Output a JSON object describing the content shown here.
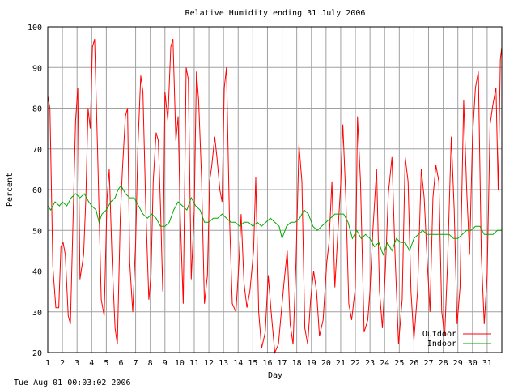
{
  "chart_data": {
    "type": "line",
    "title": "Relative Humidity ending 31 July 2006",
    "xlabel": "Day",
    "ylabel": "Percent",
    "xlim": [
      1,
      32
    ],
    "ylim": [
      20,
      100
    ],
    "x_ticks": [
      "1",
      "2",
      "3",
      "4",
      "5",
      "6",
      "7",
      "8",
      "9",
      "10",
      "11",
      "12",
      "13",
      "14",
      "15",
      "16",
      "17",
      "18",
      "19",
      "20",
      "21",
      "22",
      "23",
      "24",
      "25",
      "26",
      "27",
      "28",
      "29",
      "30",
      "31"
    ],
    "y_ticks": [
      "20",
      "30",
      "40",
      "50",
      "60",
      "70",
      "80",
      "90",
      "100"
    ],
    "grid": true,
    "legend_position": "bottom-right",
    "series": [
      {
        "name": "Outdoor",
        "color": "#ff0000",
        "points": [
          [
            1.0,
            83
          ],
          [
            1.15,
            80
          ],
          [
            1.35,
            41
          ],
          [
            1.55,
            31
          ],
          [
            1.75,
            31
          ],
          [
            1.9,
            46
          ],
          [
            2.05,
            47
          ],
          [
            2.2,
            44
          ],
          [
            2.4,
            29
          ],
          [
            2.55,
            27
          ],
          [
            2.7,
            49
          ],
          [
            2.9,
            77
          ],
          [
            3.05,
            85
          ],
          [
            3.2,
            38
          ],
          [
            3.45,
            44
          ],
          [
            3.6,
            58
          ],
          [
            3.75,
            80
          ],
          [
            3.9,
            75
          ],
          [
            4.05,
            95
          ],
          [
            4.2,
            97
          ],
          [
            4.4,
            70
          ],
          [
            4.65,
            33
          ],
          [
            4.85,
            29
          ],
          [
            5.05,
            58
          ],
          [
            5.2,
            65
          ],
          [
            5.4,
            42
          ],
          [
            5.6,
            26
          ],
          [
            5.75,
            22
          ],
          [
            5.95,
            53
          ],
          [
            6.1,
            65
          ],
          [
            6.3,
            78
          ],
          [
            6.45,
            80
          ],
          [
            6.6,
            42
          ],
          [
            6.8,
            30
          ],
          [
            7.0,
            47
          ],
          [
            7.15,
            70
          ],
          [
            7.35,
            88
          ],
          [
            7.5,
            84
          ],
          [
            7.7,
            55
          ],
          [
            7.9,
            33
          ],
          [
            8.05,
            39
          ],
          [
            8.2,
            62
          ],
          [
            8.4,
            74
          ],
          [
            8.55,
            72
          ],
          [
            8.7,
            56
          ],
          [
            8.85,
            35
          ],
          [
            9.0,
            84
          ],
          [
            9.2,
            77
          ],
          [
            9.4,
            95
          ],
          [
            9.55,
            97
          ],
          [
            9.75,
            72
          ],
          [
            9.9,
            78
          ],
          [
            10.05,
            53
          ],
          [
            10.25,
            32
          ],
          [
            10.45,
            90
          ],
          [
            10.6,
            87
          ],
          [
            10.8,
            38
          ],
          [
            11.0,
            55
          ],
          [
            11.15,
            89
          ],
          [
            11.3,
            82
          ],
          [
            11.5,
            63
          ],
          [
            11.7,
            32
          ],
          [
            11.9,
            39
          ],
          [
            12.05,
            62
          ],
          [
            12.2,
            66
          ],
          [
            12.4,
            73
          ],
          [
            12.55,
            68
          ],
          [
            12.75,
            60
          ],
          [
            12.9,
            57
          ],
          [
            13.05,
            85
          ],
          [
            13.2,
            90
          ],
          [
            13.4,
            54
          ],
          [
            13.6,
            32
          ],
          [
            13.85,
            30
          ],
          [
            14.05,
            42
          ],
          [
            14.2,
            54
          ],
          [
            14.4,
            37
          ],
          [
            14.6,
            31
          ],
          [
            14.8,
            35
          ],
          [
            15.05,
            45
          ],
          [
            15.2,
            63
          ],
          [
            15.4,
            30
          ],
          [
            15.6,
            21
          ],
          [
            15.85,
            25
          ],
          [
            16.05,
            39
          ],
          [
            16.25,
            30
          ],
          [
            16.5,
            20
          ],
          [
            16.75,
            22
          ],
          [
            16.95,
            30
          ],
          [
            17.15,
            38
          ],
          [
            17.35,
            45
          ],
          [
            17.55,
            27
          ],
          [
            17.75,
            22
          ],
          [
            17.95,
            42
          ],
          [
            18.15,
            71
          ],
          [
            18.35,
            62
          ],
          [
            18.55,
            26
          ],
          [
            18.75,
            22
          ],
          [
            18.95,
            33
          ],
          [
            19.15,
            40
          ],
          [
            19.35,
            35
          ],
          [
            19.55,
            24
          ],
          [
            19.8,
            28
          ],
          [
            20.05,
            42
          ],
          [
            20.2,
            47
          ],
          [
            20.4,
            62
          ],
          [
            20.6,
            36
          ],
          [
            20.8,
            49
          ],
          [
            21.0,
            61
          ],
          [
            21.15,
            76
          ],
          [
            21.35,
            58
          ],
          [
            21.55,
            32
          ],
          [
            21.75,
            28
          ],
          [
            22.0,
            36
          ],
          [
            22.15,
            78
          ],
          [
            22.35,
            62
          ],
          [
            22.6,
            25
          ],
          [
            22.85,
            28
          ],
          [
            23.0,
            35
          ],
          [
            23.2,
            50
          ],
          [
            23.45,
            65
          ],
          [
            23.65,
            35
          ],
          [
            23.85,
            26
          ],
          [
            24.05,
            40
          ],
          [
            24.25,
            59
          ],
          [
            24.5,
            68
          ],
          [
            24.7,
            45
          ],
          [
            24.95,
            22
          ],
          [
            25.2,
            33
          ],
          [
            25.4,
            68
          ],
          [
            25.6,
            62
          ],
          [
            25.8,
            35
          ],
          [
            26.0,
            23
          ],
          [
            26.25,
            35
          ],
          [
            26.5,
            65
          ],
          [
            26.7,
            58
          ],
          [
            26.9,
            43
          ],
          [
            27.1,
            30
          ],
          [
            27.3,
            58
          ],
          [
            27.5,
            66
          ],
          [
            27.7,
            62
          ],
          [
            27.9,
            30
          ],
          [
            28.1,
            24
          ],
          [
            28.3,
            42
          ],
          [
            28.55,
            73
          ],
          [
            28.75,
            55
          ],
          [
            28.95,
            27
          ],
          [
            29.15,
            36
          ],
          [
            29.4,
            82
          ],
          [
            29.6,
            60
          ],
          [
            29.8,
            44
          ],
          [
            30.0,
            73
          ],
          [
            30.2,
            85
          ],
          [
            30.4,
            89
          ],
          [
            30.6,
            44
          ],
          [
            30.8,
            27
          ],
          [
            31.0,
            39
          ],
          [
            31.2,
            76
          ],
          [
            31.4,
            81
          ],
          [
            31.6,
            85
          ],
          [
            31.75,
            60
          ],
          [
            31.9,
            92
          ],
          [
            32.0,
            95
          ]
        ]
      },
      {
        "name": "Indoor",
        "color": "#00aa00",
        "points": [
          [
            1.0,
            56
          ],
          [
            1.2,
            55
          ],
          [
            1.5,
            57
          ],
          [
            1.8,
            56
          ],
          [
            2.0,
            57
          ],
          [
            2.3,
            56
          ],
          [
            2.6,
            58
          ],
          [
            2.9,
            59
          ],
          [
            3.2,
            58
          ],
          [
            3.5,
            59
          ],
          [
            3.8,
            57
          ],
          [
            4.0,
            56
          ],
          [
            4.3,
            55
          ],
          [
            4.5,
            52
          ],
          [
            4.7,
            54
          ],
          [
            5.0,
            55
          ],
          [
            5.3,
            57
          ],
          [
            5.6,
            58
          ],
          [
            5.8,
            60
          ],
          [
            6.0,
            61
          ],
          [
            6.3,
            59
          ],
          [
            6.6,
            58
          ],
          [
            6.9,
            58
          ],
          [
            7.2,
            56
          ],
          [
            7.5,
            54
          ],
          [
            7.8,
            53
          ],
          [
            8.1,
            54
          ],
          [
            8.4,
            53
          ],
          [
            8.7,
            51
          ],
          [
            9.0,
            51
          ],
          [
            9.3,
            52
          ],
          [
            9.6,
            55
          ],
          [
            9.9,
            57
          ],
          [
            10.2,
            56
          ],
          [
            10.5,
            55
          ],
          [
            10.8,
            58
          ],
          [
            11.1,
            56
          ],
          [
            11.4,
            55
          ],
          [
            11.7,
            52
          ],
          [
            12.0,
            52
          ],
          [
            12.3,
            53
          ],
          [
            12.6,
            53
          ],
          [
            12.9,
            54
          ],
          [
            13.2,
            53
          ],
          [
            13.5,
            52
          ],
          [
            13.8,
            52
          ],
          [
            14.1,
            51
          ],
          [
            14.4,
            52
          ],
          [
            14.7,
            52
          ],
          [
            15.0,
            51
          ],
          [
            15.3,
            52
          ],
          [
            15.6,
            51
          ],
          [
            15.9,
            52
          ],
          [
            16.2,
            53
          ],
          [
            16.5,
            52
          ],
          [
            16.8,
            51
          ],
          [
            17.0,
            48
          ],
          [
            17.3,
            51
          ],
          [
            17.6,
            52
          ],
          [
            17.9,
            52
          ],
          [
            18.2,
            53
          ],
          [
            18.5,
            55
          ],
          [
            18.8,
            54
          ],
          [
            19.1,
            51
          ],
          [
            19.4,
            50
          ],
          [
            19.7,
            51
          ],
          [
            20.0,
            52
          ],
          [
            20.3,
            53
          ],
          [
            20.6,
            54
          ],
          [
            20.9,
            54
          ],
          [
            21.2,
            54
          ],
          [
            21.5,
            52
          ],
          [
            21.8,
            48
          ],
          [
            22.1,
            50
          ],
          [
            22.4,
            48
          ],
          [
            22.7,
            49
          ],
          [
            23.0,
            48
          ],
          [
            23.3,
            46
          ],
          [
            23.6,
            47
          ],
          [
            23.9,
            44
          ],
          [
            24.2,
            47
          ],
          [
            24.5,
            45
          ],
          [
            24.8,
            48
          ],
          [
            25.1,
            47
          ],
          [
            25.4,
            47
          ],
          [
            25.7,
            45
          ],
          [
            26.0,
            48
          ],
          [
            26.3,
            49
          ],
          [
            26.6,
            50
          ],
          [
            26.9,
            49
          ],
          [
            27.2,
            49
          ],
          [
            27.5,
            49
          ],
          [
            27.8,
            49
          ],
          [
            28.1,
            49
          ],
          [
            28.4,
            49
          ],
          [
            28.7,
            48
          ],
          [
            29.0,
            48
          ],
          [
            29.3,
            49
          ],
          [
            29.6,
            50
          ],
          [
            29.9,
            50
          ],
          [
            30.2,
            51
          ],
          [
            30.5,
            51
          ],
          [
            30.8,
            49
          ],
          [
            31.1,
            49
          ],
          [
            31.4,
            49
          ],
          [
            31.7,
            50
          ],
          [
            32.0,
            50
          ]
        ]
      }
    ]
  },
  "footer": {
    "timestamp": "Tue Aug 01 00:03:02 2006"
  }
}
